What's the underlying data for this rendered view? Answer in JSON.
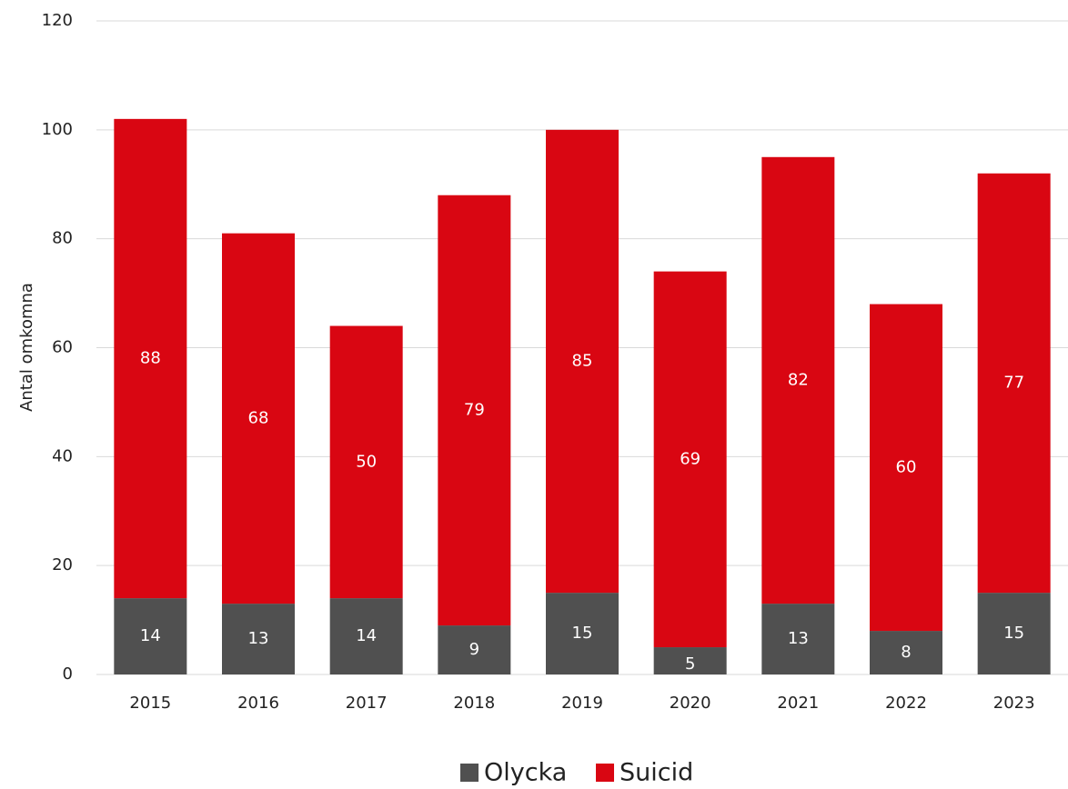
{
  "chart_data": {
    "type": "stacked_bar",
    "y_label": "Antal omkomna",
    "categories": [
      "2015",
      "2016",
      "2017",
      "2018",
      "2019",
      "2020",
      "2021",
      "2022",
      "2023"
    ],
    "series": [
      {
        "name": "Olycka",
        "color": "#505050",
        "values": [
          14,
          13,
          14,
          9,
          15,
          5,
          13,
          8,
          15
        ]
      },
      {
        "name": "Suicid",
        "color": "#d90612",
        "values": [
          88,
          68,
          50,
          79,
          85,
          69,
          82,
          60,
          77
        ]
      }
    ],
    "ylim": [
      0,
      120
    ],
    "yticks": [
      0,
      20,
      40,
      60,
      80,
      100,
      120
    ],
    "grid": true,
    "legend": "bottom"
  }
}
